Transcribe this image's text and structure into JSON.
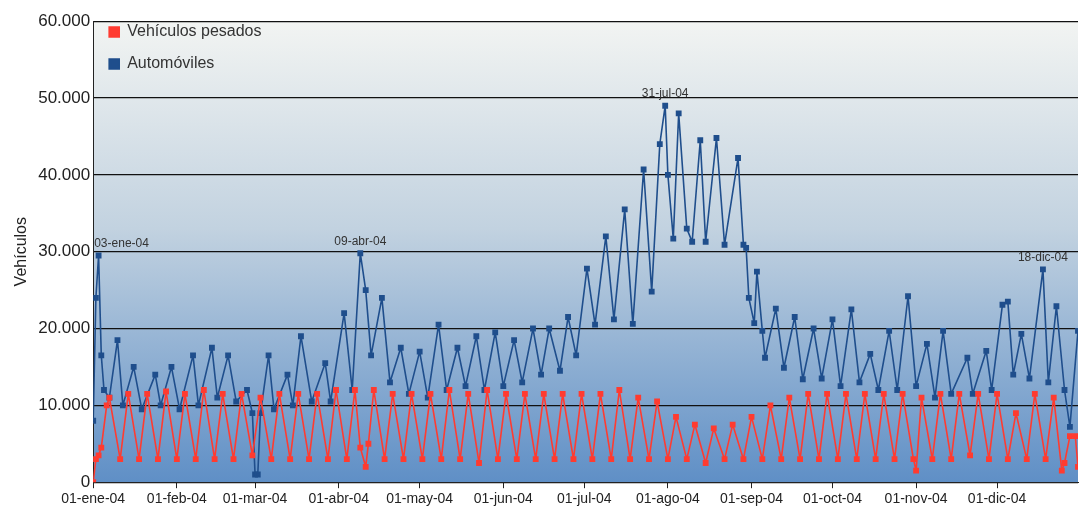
{
  "chart_data": {
    "type": "line",
    "ylabel": "Vehículos",
    "xlim": [
      "2004-01-01",
      "2004-12-31"
    ],
    "xticks": [
      {
        "value": "2004-01-01",
        "label": "01-ene-04"
      },
      {
        "value": "2004-02-01",
        "label": "01-feb-04"
      },
      {
        "value": "2004-03-01",
        "label": "01-mar-04"
      },
      {
        "value": "2004-04-01",
        "label": "01-abr-04"
      },
      {
        "value": "2004-05-01",
        "label": "01-may-04"
      },
      {
        "value": "2004-06-01",
        "label": "01-jun-04"
      },
      {
        "value": "2004-07-01",
        "label": "01-jul-04"
      },
      {
        "value": "2004-08-01",
        "label": "01-ago-04"
      },
      {
        "value": "2004-09-01",
        "label": "01-sep-04"
      },
      {
        "value": "2004-10-01",
        "label": "01-oct-04"
      },
      {
        "value": "2004-11-01",
        "label": "01-nov-04"
      },
      {
        "value": "2004-12-01",
        "label": "01-dic-04"
      }
    ],
    "ylim": [
      0,
      60000
    ],
    "yticks": [
      0,
      {
        "value": 10000,
        "label": "10.000"
      },
      {
        "value": 20000,
        "label": "20.000"
      },
      {
        "value": 30000,
        "label": "30.000"
      },
      {
        "value": 40000,
        "label": "40.000"
      },
      {
        "value": 50000,
        "label": "50.000"
      },
      {
        "value": 60000,
        "label": "60.000"
      }
    ],
    "grid": "y",
    "legend": "top left",
    "marker": "square",
    "line_style": "solid",
    "annotations": [
      {
        "text": "03-ene-04",
        "x": "2004-01-03",
        "y": 29500
      },
      {
        "text": "09-abr-04",
        "x": "2004-04-09",
        "y": 29800
      },
      {
        "text": "31-jul-04",
        "x": "2004-07-31",
        "y": 49000
      },
      {
        "text": "18-dic-04",
        "x": "2004-12-18",
        "y": 27700
      }
    ],
    "series": [
      {
        "name": "Vehículos pesados",
        "color": "#ff3b30",
        "x": [
          "2004-01-01",
          "2004-01-02",
          "2004-01-03",
          "2004-01-04",
          "2004-01-06",
          "2004-01-07",
          "2004-01-11",
          "2004-01-14",
          "2004-01-18",
          "2004-01-21",
          "2004-01-25",
          "2004-01-28",
          "2004-02-01",
          "2004-02-04",
          "2004-02-08",
          "2004-02-11",
          "2004-02-15",
          "2004-02-18",
          "2004-02-22",
          "2004-02-25",
          "2004-02-29",
          "2004-03-03",
          "2004-03-07",
          "2004-03-10",
          "2004-03-14",
          "2004-03-17",
          "2004-03-21",
          "2004-03-24",
          "2004-03-28",
          "2004-03-31",
          "2004-04-04",
          "2004-04-07",
          "2004-04-09",
          "2004-04-11",
          "2004-04-12",
          "2004-04-14",
          "2004-04-18",
          "2004-04-21",
          "2004-04-25",
          "2004-04-28",
          "2004-05-02",
          "2004-05-05",
          "2004-05-09",
          "2004-05-12",
          "2004-05-16",
          "2004-05-19",
          "2004-05-23",
          "2004-05-26",
          "2004-05-30",
          "2004-06-02",
          "2004-06-06",
          "2004-06-09",
          "2004-06-13",
          "2004-06-16",
          "2004-06-20",
          "2004-06-23",
          "2004-06-27",
          "2004-06-30",
          "2004-07-04",
          "2004-07-07",
          "2004-07-11",
          "2004-07-14",
          "2004-07-18",
          "2004-07-21",
          "2004-07-25",
          "2004-07-28",
          "2004-08-01",
          "2004-08-04",
          "2004-08-08",
          "2004-08-11",
          "2004-08-15",
          "2004-08-18",
          "2004-08-22",
          "2004-08-25",
          "2004-08-29",
          "2004-09-01",
          "2004-09-05",
          "2004-09-08",
          "2004-09-12",
          "2004-09-15",
          "2004-09-19",
          "2004-09-22",
          "2004-09-26",
          "2004-09-29",
          "2004-10-03",
          "2004-10-06",
          "2004-10-10",
          "2004-10-13",
          "2004-10-17",
          "2004-10-20",
          "2004-10-24",
          "2004-10-27",
          "2004-10-31",
          "2004-11-01",
          "2004-11-03",
          "2004-11-07",
          "2004-11-10",
          "2004-11-14",
          "2004-11-17",
          "2004-11-21",
          "2004-11-24",
          "2004-11-28",
          "2004-12-01",
          "2004-12-05",
          "2004-12-08",
          "2004-12-12",
          "2004-12-15",
          "2004-12-19",
          "2004-12-22",
          "2004-12-25",
          "2004-12-26",
          "2004-12-28",
          "2004-12-30",
          "2004-12-31"
        ],
        "values": [
          0,
          3000,
          3500,
          4500,
          10000,
          11000,
          3000,
          11500,
          3000,
          11500,
          3000,
          11800,
          3000,
          11500,
          3000,
          12000,
          3000,
          11500,
          3000,
          11500,
          3500,
          11000,
          3000,
          11500,
          3000,
          11500,
          3000,
          11500,
          3000,
          12000,
          3000,
          12000,
          4500,
          2000,
          5000,
          12000,
          3000,
          11500,
          3000,
          11500,
          3000,
          11500,
          3000,
          12000,
          3000,
          11500,
          2500,
          12000,
          3000,
          11500,
          3000,
          11500,
          3000,
          11500,
          3000,
          11500,
          3000,
          11500,
          3000,
          11500,
          3000,
          12000,
          3000,
          11000,
          3000,
          10500,
          3000,
          8500,
          3000,
          7500,
          2500,
          7000,
          3000,
          7500,
          3000,
          8500,
          3000,
          10000,
          3000,
          11000,
          3000,
          11500,
          3000,
          11500,
          3000,
          11500,
          3000,
          11500,
          3000,
          11500,
          3000,
          11500,
          3000,
          1500,
          11000,
          3000,
          11500,
          3000,
          11500,
          3500,
          11500,
          3000,
          11500,
          3000,
          9000,
          3000,
          11500,
          3000,
          11000,
          1500,
          2500,
          6000,
          6000,
          2000
        ]
      },
      {
        "name": "Automóviles",
        "color": "#1f4e8c",
        "x": [
          "2004-01-01",
          "2004-01-02",
          "2004-01-03",
          "2004-01-04",
          "2004-01-05",
          "2004-01-07",
          "2004-01-10",
          "2004-01-12",
          "2004-01-16",
          "2004-01-19",
          "2004-01-24",
          "2004-01-26",
          "2004-01-30",
          "2004-02-02",
          "2004-02-07",
          "2004-02-09",
          "2004-02-14",
          "2004-02-16",
          "2004-02-20",
          "2004-02-23",
          "2004-02-27",
          "2004-02-29",
          "2004-03-01",
          "2004-03-02",
          "2004-03-03",
          "2004-03-06",
          "2004-03-08",
          "2004-03-13",
          "2004-03-15",
          "2004-03-18",
          "2004-03-22",
          "2004-03-27",
          "2004-03-29",
          "2004-04-03",
          "2004-04-06",
          "2004-04-09",
          "2004-04-11",
          "2004-04-13",
          "2004-04-17",
          "2004-04-20",
          "2004-04-24",
          "2004-04-27",
          "2004-05-01",
          "2004-05-04",
          "2004-05-08",
          "2004-05-11",
          "2004-05-15",
          "2004-05-18",
          "2004-05-22",
          "2004-05-25",
          "2004-05-29",
          "2004-06-01",
          "2004-06-05",
          "2004-06-08",
          "2004-06-12",
          "2004-06-15",
          "2004-06-18",
          "2004-06-22",
          "2004-06-25",
          "2004-06-28",
          "2004-07-02",
          "2004-07-05",
          "2004-07-09",
          "2004-07-12",
          "2004-07-16",
          "2004-07-19",
          "2004-07-23",
          "2004-07-26",
          "2004-07-29",
          "2004-07-31",
          "2004-08-01",
          "2004-08-03",
          "2004-08-05",
          "2004-08-08",
          "2004-08-10",
          "2004-08-13",
          "2004-08-15",
          "2004-08-19",
          "2004-08-22",
          "2004-08-27",
          "2004-08-29",
          "2004-08-30",
          "2004-08-31",
          "2004-09-02",
          "2004-09-03",
          "2004-09-05",
          "2004-09-06",
          "2004-09-10",
          "2004-09-13",
          "2004-09-17",
          "2004-09-20",
          "2004-09-24",
          "2004-09-27",
          "2004-10-01",
          "2004-10-04",
          "2004-10-08",
          "2004-10-11",
          "2004-10-15",
          "2004-10-18",
          "2004-10-22",
          "2004-10-25",
          "2004-10-29",
          "2004-11-01",
          "2004-11-05",
          "2004-11-08",
          "2004-11-11",
          "2004-11-14",
          "2004-11-20",
          "2004-11-22",
          "2004-11-27",
          "2004-11-29",
          "2004-12-03",
          "2004-12-05",
          "2004-12-07",
          "2004-12-10",
          "2004-12-13",
          "2004-12-18",
          "2004-12-20",
          "2004-12-23",
          "2004-12-26",
          "2004-12-28",
          "2004-12-31"
        ],
        "values": [
          8000,
          24000,
          29500,
          16500,
          12000,
          11000,
          18500,
          10000,
          15000,
          9500,
          14000,
          10000,
          15000,
          9500,
          16500,
          10000,
          17500,
          11000,
          16500,
          10500,
          12000,
          9000,
          1000,
          1000,
          9000,
          16500,
          9500,
          14000,
          10000,
          19000,
          10500,
          15500,
          10500,
          22000,
          12000,
          29800,
          25000,
          16500,
          24000,
          13000,
          17500,
          11500,
          17000,
          11000,
          20500,
          12000,
          17500,
          12500,
          19000,
          12000,
          19500,
          12500,
          18500,
          13000,
          20000,
          14000,
          20000,
          14500,
          21500,
          16500,
          27800,
          20500,
          32000,
          21200,
          35500,
          20600,
          40700,
          24800,
          44000,
          49000,
          40000,
          31700,
          48000,
          33000,
          31300,
          44500,
          31300,
          44800,
          30900,
          42200,
          30900,
          30500,
          24000,
          20700,
          27400,
          19700,
          16200,
          22600,
          14900,
          21500,
          13400,
          20000,
          13500,
          21200,
          12500,
          22500,
          13000,
          16700,
          12000,
          19700,
          12000,
          24200,
          12500,
          18000,
          11000,
          19700,
          11500,
          16200,
          11500,
          17100,
          12000,
          23100,
          23500,
          14000,
          19300,
          13500,
          27700,
          13000,
          22900,
          12000,
          7200,
          19700
        ]
      }
    ]
  }
}
